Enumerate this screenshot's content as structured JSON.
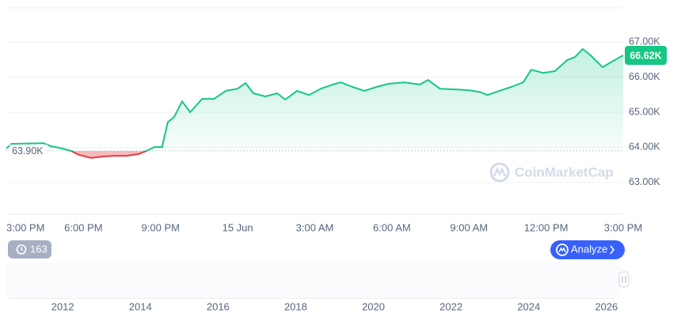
{
  "chart_data": [
    {
      "type": "line",
      "x": [
        0,
        0.2,
        1.44,
        1.74,
        2.05,
        2.52,
        2.82,
        3.29,
        3.75,
        4.21,
        4.68,
        5.14,
        5.45,
        5.76,
        6.06,
        6.28,
        6.53,
        6.84,
        7.15,
        7.62,
        8.08,
        8.54,
        9.0,
        9.31,
        9.61,
        10.08,
        10.54,
        10.85,
        11.31,
        11.77,
        12.24,
        12.7,
        13.01,
        13.47,
        13.93,
        14.4,
        14.86,
        15.48,
        16.09,
        16.4,
        16.87,
        17.48,
        17.95,
        18.41,
        18.72,
        19.18,
        19.64,
        20.11,
        20.42,
        20.88,
        21.34,
        21.81,
        22.12,
        22.43,
        22.73,
        23.2,
        23.51,
        24
      ],
      "series": [
        {
          "color": "#16c784",
          "values": [
            63970,
            64100,
            64120,
            64030,
            63990,
            63900,
            63790,
            63700,
            63740,
            63760,
            63760,
            63810,
            63900,
            64010,
            64010,
            64710,
            64870,
            65310,
            65000,
            65380,
            65380,
            65610,
            65670,
            65830,
            65540,
            65450,
            65540,
            65360,
            65610,
            65490,
            65670,
            65790,
            65850,
            65720,
            65610,
            65720,
            65810,
            65850,
            65790,
            65920,
            65670,
            65650,
            65630,
            65580,
            65490,
            65610,
            65720,
            65850,
            66210,
            66120,
            66170,
            66480,
            66570,
            66800,
            66620,
            66280,
            66420,
            66620
          ]
        }
      ],
      "down_color": "#ea3943",
      "xlim": [
        0,
        24
      ],
      "xticks": [
        {
          "value": 0,
          "label": "3:00 PM"
        },
        {
          "value": 3,
          "label": "6:00 PM"
        },
        {
          "value": 6,
          "label": "9:00 PM"
        },
        {
          "value": 9,
          "label": "15 Jun"
        },
        {
          "value": 12,
          "label": "3:00 AM"
        },
        {
          "value": 15,
          "label": "6:00 AM"
        },
        {
          "value": 18,
          "label": "9:00 AM"
        },
        {
          "value": 21,
          "label": "12:00 PM"
        },
        {
          "value": 24,
          "label": "3:00 PM"
        }
      ],
      "ylim": [
        62120,
        67970
      ],
      "yticks": [
        {
          "value": 63000,
          "label": "63.00K"
        },
        {
          "value": 64000,
          "label": "64.00K"
        },
        {
          "value": 65000,
          "label": "65.00K"
        },
        {
          "value": 66000,
          "label": "66.00K"
        },
        {
          "value": 67000,
          "label": "67.00K"
        }
      ],
      "baseline": {
        "value": 63900,
        "label": "63.90K"
      },
      "current": {
        "value": 66620,
        "label": "66.62K"
      },
      "grid": true
    },
    {
      "type": "area",
      "x": [
        2010.6,
        2013,
        2016,
        2017,
        2017.95,
        2018.5,
        2019.5,
        2020.2,
        2021.0,
        2021.3,
        2021.5,
        2021.85,
        2022.5,
        2023,
        2024.2,
        2024.6,
        2025,
        2025.5,
        2025.8,
        2026.2
      ],
      "values": [
        0,
        0.1,
        0.4,
        1,
        19,
        7,
        10,
        7,
        30,
        60,
        35,
        67,
        20,
        25,
        70,
        58,
        100,
        108,
        120,
        75
      ],
      "color": "#e3e6ea",
      "xlim": [
        2010.55,
        2026.35
      ],
      "xticks": [
        2012,
        2014,
        2016,
        2018,
        2020,
        2022,
        2024,
        2026
      ]
    }
  ],
  "ui": {
    "history_count": "163",
    "analyze_button": "Analyze",
    "watermark": "CoinMarketCap"
  }
}
